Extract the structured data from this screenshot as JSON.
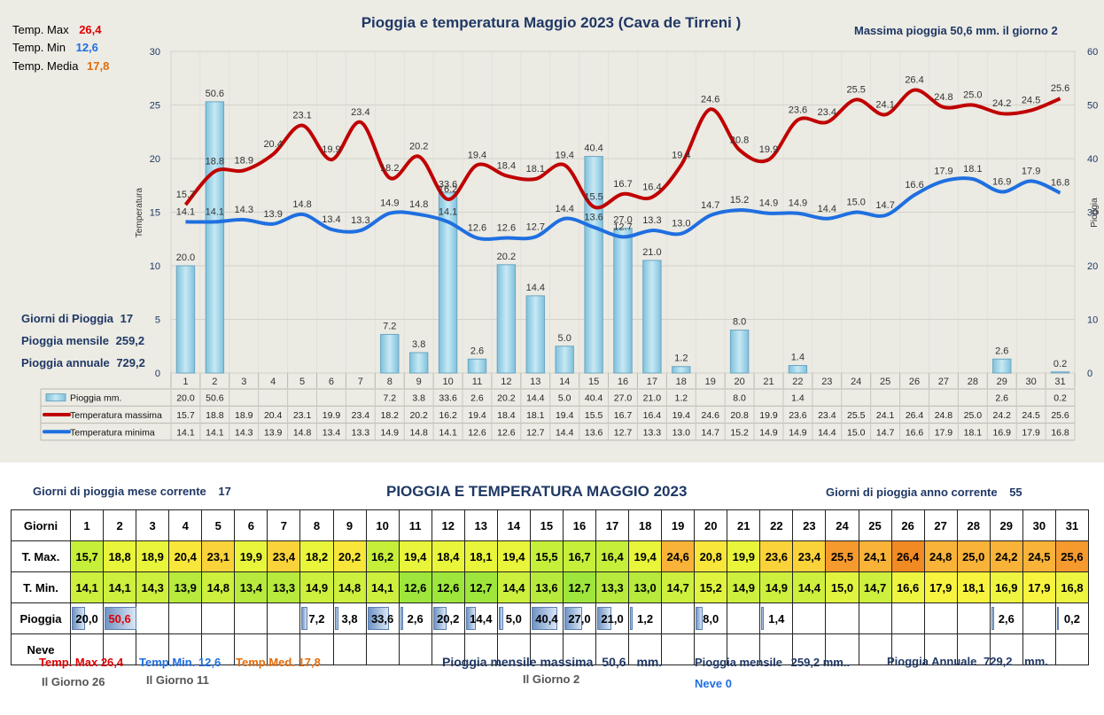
{
  "chart_data": {
    "type": "bar+line",
    "title": "Pioggia e temperatura Maggio 2023 (Cava de Tirreni )",
    "categories": [
      "1",
      "2",
      "3",
      "4",
      "5",
      "6",
      "7",
      "8",
      "9",
      "10",
      "11",
      "12",
      "13",
      "14",
      "15",
      "16",
      "17",
      "18",
      "19",
      "20",
      "21",
      "22",
      "23",
      "24",
      "25",
      "26",
      "27",
      "28",
      "29",
      "30",
      "31"
    ],
    "ylabel_left": "Temperatura",
    "ylabel_right": "Pioggia",
    "ylim_left": [
      0,
      30
    ],
    "ylim_right": [
      0,
      60
    ],
    "yticks_left": [
      "0",
      "5",
      "10",
      "15",
      "20",
      "25",
      "30"
    ],
    "yticks_right": [
      "0",
      "10",
      "20",
      "30",
      "40",
      "50",
      "60"
    ],
    "grid": true,
    "legend_placement": "data-table",
    "series": [
      {
        "name": "Pioggia mm.",
        "type": "bar",
        "axis": "right",
        "color": "#9fd3e6",
        "values": [
          20.0,
          50.6,
          null,
          null,
          null,
          null,
          null,
          7.2,
          3.8,
          33.6,
          2.6,
          20.2,
          14.4,
          5.0,
          40.4,
          27.0,
          21.0,
          1.2,
          null,
          8.0,
          null,
          1.4,
          null,
          null,
          null,
          null,
          null,
          null,
          2.6,
          null,
          0.2
        ]
      },
      {
        "name": "Temperatura massima",
        "type": "line",
        "axis": "left",
        "color": "#c00000",
        "values": [
          15.7,
          18.8,
          18.9,
          20.4,
          23.1,
          19.9,
          23.4,
          18.2,
          20.2,
          16.2,
          19.4,
          18.4,
          18.1,
          19.4,
          15.5,
          16.7,
          16.4,
          19.4,
          24.6,
          20.8,
          19.9,
          23.6,
          23.4,
          25.5,
          24.1,
          26.4,
          24.8,
          25.0,
          24.2,
          24.5,
          25.6
        ]
      },
      {
        "name": "Temperatura minima",
        "type": "line",
        "axis": "left",
        "color": "#1f6fe0",
        "values": [
          14.1,
          14.1,
          14.3,
          13.9,
          14.8,
          13.4,
          13.3,
          14.9,
          14.8,
          14.1,
          12.6,
          12.6,
          12.7,
          14.4,
          13.6,
          12.7,
          13.3,
          13.0,
          14.7,
          15.2,
          14.9,
          14.9,
          14.4,
          15.0,
          14.7,
          16.6,
          17.9,
          18.1,
          16.9,
          17.9,
          16.8
        ]
      }
    ]
  },
  "top_stats": {
    "tmax_label": "Temp. Max",
    "tmax_value": "26,4",
    "tmin_label": "Temp. Min",
    "tmin_value": "12,6",
    "tmed_label": "Temp. Media",
    "tmed_value": "17,8",
    "max_rain_text": "Massima pioggia  50,6 mm. il giorno  2",
    "rain_days_label": "Giorni di Pioggia",
    "rain_days_value": "17",
    "monthly_rain_label": "Pioggia mensile",
    "monthly_rain_value": "259,2",
    "annual_rain_label": "Pioggia annuale",
    "annual_rain_value": "729,2"
  },
  "table": {
    "header_left_label": "Giorni di pioggia mese corrente",
    "header_left_value": "17",
    "title": "PIOGGIA E TEMPERATURA MAGGIO 2023",
    "header_right_label": "Giorni di pioggia anno corrente",
    "header_right_value": "55",
    "row_labels": {
      "days": "Giorni",
      "tmax": "T. Max.",
      "tmin": "T. Min.",
      "rain": "Pioggia",
      "snow": "Neve"
    },
    "days": [
      "1",
      "2",
      "3",
      "4",
      "5",
      "6",
      "7",
      "8",
      "9",
      "10",
      "11",
      "12",
      "13",
      "14",
      "15",
      "16",
      "17",
      "18",
      "19",
      "20",
      "21",
      "22",
      "23",
      "24",
      "25",
      "26",
      "27",
      "28",
      "29",
      "30",
      "31"
    ],
    "tmax": [
      "15,7",
      "18,8",
      "18,9",
      "20,4",
      "23,1",
      "19,9",
      "23,4",
      "18,2",
      "20,2",
      "16,2",
      "19,4",
      "18,4",
      "18,1",
      "19,4",
      "15,5",
      "16,7",
      "16,4",
      "19,4",
      "24,6",
      "20,8",
      "19,9",
      "23,6",
      "23,4",
      "25,5",
      "24,1",
      "26,4",
      "24,8",
      "25,0",
      "24,2",
      "24,5",
      "25,6"
    ],
    "tmin": [
      "14,1",
      "14,1",
      "14,3",
      "13,9",
      "14,8",
      "13,4",
      "13,3",
      "14,9",
      "14,8",
      "14,1",
      "12,6",
      "12,6",
      "12,7",
      "14,4",
      "13,6",
      "12,7",
      "13,3",
      "13,0",
      "14,7",
      "15,2",
      "14,9",
      "14,9",
      "14,4",
      "15,0",
      "14,7",
      "16,6",
      "17,9",
      "18,1",
      "16,9",
      "17,9",
      "16,8"
    ],
    "rain": [
      "20,0",
      "50,6",
      "",
      "",
      "",
      "",
      "",
      "7,2",
      "3,8",
      "33,6",
      "2,6",
      "20,2",
      "14,4",
      "5,0",
      "40,4",
      "27,0",
      "21,0",
      "1,2",
      "",
      "8,0",
      "",
      "1,4",
      "",
      "",
      "",
      "",
      "",
      "",
      "2,6",
      "",
      "0,2"
    ],
    "rain_values": [
      20.0,
      50.6,
      0,
      0,
      0,
      0,
      0,
      7.2,
      3.8,
      33.6,
      2.6,
      20.2,
      14.4,
      5.0,
      40.4,
      27.0,
      21.0,
      1.2,
      0,
      8.0,
      0,
      1.4,
      0,
      0,
      0,
      0,
      0,
      0,
      2.6,
      0,
      0.2
    ],
    "rain_max_day_index": 1
  },
  "bottom_stats": {
    "tmax_text": "Temp. Max 26,4",
    "tmin_text": "Temp.Min. 12,6",
    "tmed_text": "Temp.Med. 17,8",
    "tmax_day": "Il Giorno  26",
    "tmin_day": "Il Giorno 11",
    "max_monthly_label": "Pioggia mensile massima",
    "max_monthly_value": "50,6",
    "max_monthly_unit": "mm.",
    "max_monthly_day": "Il Giorno  2",
    "monthly_label": "Pioggia mensile",
    "monthly_value": "259,2 mm..",
    "annual_label": "Pioggia Annuale",
    "annual_value": "729,2",
    "annual_unit": "mm.",
    "snow_text": "Neve 0"
  },
  "colors": {
    "tmax": "#c00000",
    "tmin": "#1f6fe0",
    "tmed": "#e36c09",
    "navy": "#1f3864",
    "bar": "#9fd3e6",
    "panel": "#ecebe4"
  }
}
